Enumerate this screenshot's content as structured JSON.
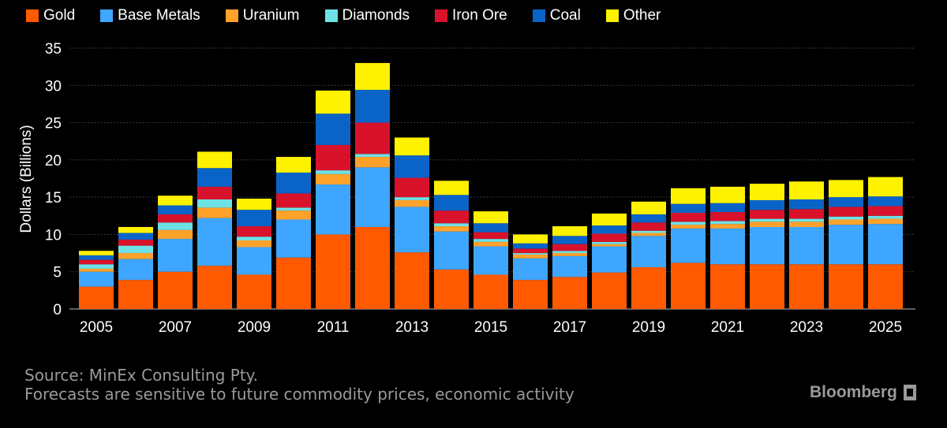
{
  "colors": {
    "background": "#000000",
    "grid": "#3a3a3a",
    "text": "#ffffff",
    "footer": "#9a9a9a"
  },
  "chart_data": {
    "type": "bar",
    "stacked": true,
    "ylabel": "Dollars (Billions)",
    "ylim": [
      0,
      35
    ],
    "yticks": [
      0,
      5,
      10,
      15,
      20,
      25,
      30,
      35
    ],
    "x": [
      2005,
      2006,
      2007,
      2008,
      2009,
      2010,
      2011,
      2012,
      2013,
      2014,
      2015,
      2016,
      2017,
      2018,
      2019,
      2020,
      2021,
      2022,
      2023,
      2024,
      2025
    ],
    "xtick_labels": [
      "2005",
      "2007",
      "2009",
      "2011",
      "2013",
      "2015",
      "2017",
      "2019",
      "2021",
      "2023",
      "2025"
    ],
    "grid": true,
    "legend_position": "top-left",
    "series": [
      {
        "name": "Gold",
        "color": "#ff5a00",
        "values": [
          3.0,
          3.9,
          5.0,
          5.8,
          4.6,
          6.9,
          10.0,
          11.0,
          7.6,
          5.3,
          4.6,
          3.9,
          4.3,
          4.9,
          5.6,
          6.2,
          6.0,
          6.0,
          6.0,
          6.0,
          6.0
        ]
      },
      {
        "name": "Base Metals",
        "color": "#3ea6ff",
        "values": [
          2.0,
          2.8,
          4.4,
          6.4,
          3.7,
          5.1,
          6.7,
          8.0,
          6.1,
          5.1,
          3.8,
          2.9,
          2.8,
          3.5,
          4.2,
          4.6,
          4.8,
          5.0,
          5.0,
          5.3,
          5.4
        ]
      },
      {
        "name": "Uranium",
        "color": "#ffa22b",
        "values": [
          0.4,
          0.8,
          1.2,
          1.4,
          0.9,
          1.2,
          1.4,
          1.4,
          0.9,
          0.7,
          0.6,
          0.5,
          0.4,
          0.3,
          0.4,
          0.5,
          0.6,
          0.7,
          0.7,
          0.7,
          0.7
        ]
      },
      {
        "name": "Diamonds",
        "color": "#6ee1e6",
        "values": [
          0.6,
          1.0,
          1.0,
          1.1,
          0.5,
          0.4,
          0.5,
          0.4,
          0.4,
          0.4,
          0.4,
          0.2,
          0.3,
          0.3,
          0.3,
          0.4,
          0.4,
          0.4,
          0.4,
          0.4,
          0.4
        ]
      },
      {
        "name": "Iron Ore",
        "color": "#d9122b",
        "values": [
          0.6,
          0.8,
          1.1,
          1.7,
          1.4,
          1.9,
          3.4,
          4.2,
          2.6,
          1.7,
          0.9,
          0.6,
          0.9,
          1.1,
          1.1,
          1.2,
          1.2,
          1.2,
          1.3,
          1.3,
          1.3
        ]
      },
      {
        "name": "Coal",
        "color": "#0a64c8",
        "values": [
          0.6,
          0.9,
          1.2,
          2.5,
          2.2,
          2.8,
          4.2,
          4.4,
          3.0,
          2.1,
          1.2,
          0.7,
          1.1,
          1.1,
          1.1,
          1.2,
          1.2,
          1.3,
          1.3,
          1.3,
          1.3
        ]
      },
      {
        "name": "Other",
        "color": "#fff200",
        "values": [
          0.6,
          0.8,
          1.3,
          2.2,
          1.5,
          2.1,
          3.1,
          3.6,
          2.4,
          1.9,
          1.6,
          1.2,
          1.3,
          1.6,
          1.7,
          2.1,
          2.2,
          2.2,
          2.4,
          2.3,
          2.6
        ]
      }
    ]
  },
  "footer": {
    "source": "Source: MinEx Consulting Pty.",
    "note": "Forecasts are sensitive to future commodity prices, economic activity",
    "brand": "Bloomberg"
  }
}
